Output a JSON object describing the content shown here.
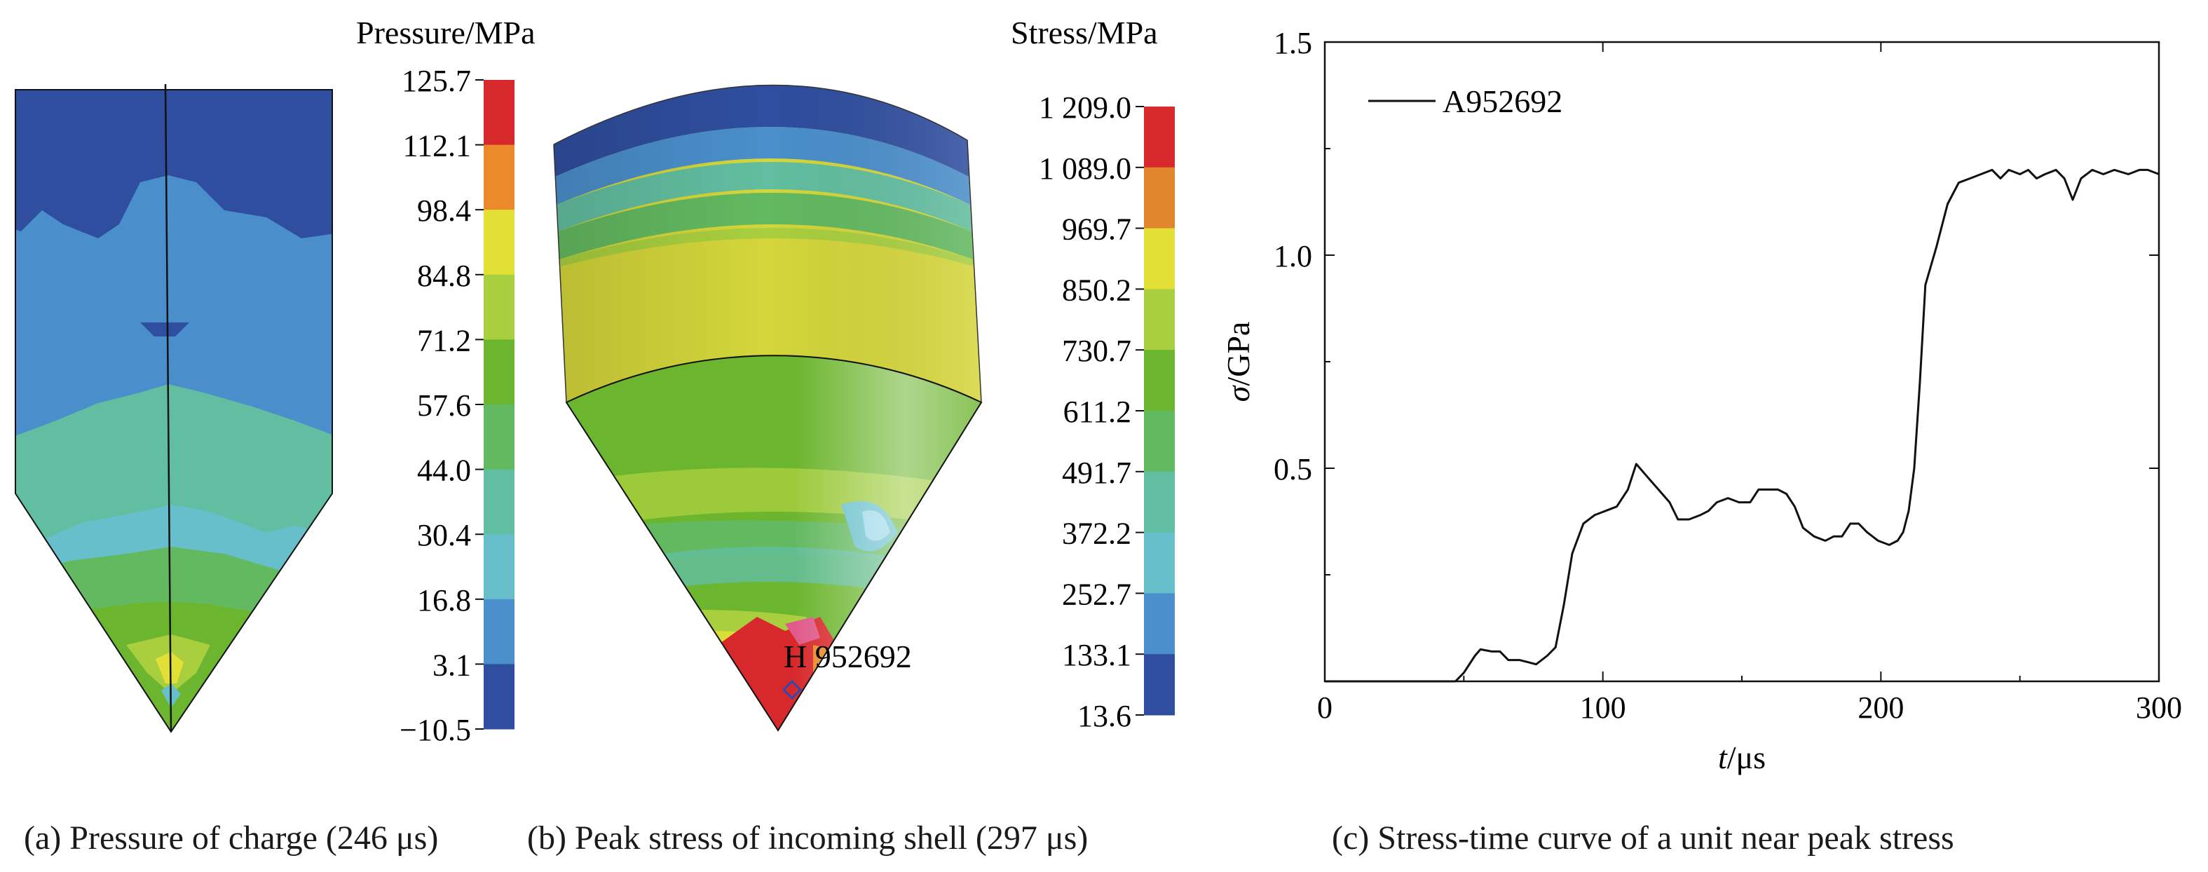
{
  "panel_a": {
    "legend_title": "Pressure/MPa",
    "ticks": [
      "125.7",
      "112.1",
      "98.4",
      "84.8",
      "71.2",
      "57.6",
      "44.0",
      "30.4",
      "16.8",
      "3.1",
      "−10.5"
    ],
    "colors": [
      "#d7292b",
      "#ea8a2a",
      "#e2e036",
      "#a9cf3f",
      "#6cb52e",
      "#63b960",
      "#62bea0",
      "#67bfcc",
      "#4a8fcb",
      "#2f4e9f"
    ],
    "caption": "(a) Pressure of charge (246 μs)"
  },
  "panel_b": {
    "legend_title": "Stress/MPa",
    "ticks": [
      "1 209.0",
      "1 089.0",
      "969.7",
      "850.2",
      "730.7",
      "611.2",
      "491.7",
      "372.2",
      "252.7",
      "133.1",
      "13.6"
    ],
    "colors": [
      "#d7292b",
      "#e0872d",
      "#e2e036",
      "#a9cf3f",
      "#6cb52e",
      "#63b960",
      "#62bea0",
      "#67bfcc",
      "#4a8fcb",
      "#2f4e9f"
    ],
    "annotation": "H 952692",
    "caption": "(b) Peak  stress of incoming shell (297 μs)"
  },
  "chart_data": {
    "type": "line",
    "xlabel_italic": "t",
    "xlabel_unit": "/μs",
    "ylabel_italic": "σ",
    "ylabel_unit": "/GPa",
    "xlim": [
      0,
      300
    ],
    "ylim": [
      0,
      1.5
    ],
    "x_ticks": [
      "0",
      "100",
      "200",
      "300"
    ],
    "y_ticks": [
      "0.5",
      "1.0",
      "1.5"
    ],
    "series": [
      {
        "name": "A952692",
        "color": "#111111",
        "points": [
          [
            0,
            0
          ],
          [
            47,
            0
          ],
          [
            50,
            0.02
          ],
          [
            54,
            0.06
          ],
          [
            56,
            0.075
          ],
          [
            60,
            0.07
          ],
          [
            63,
            0.07
          ],
          [
            66,
            0.05
          ],
          [
            70,
            0.05
          ],
          [
            73,
            0.045
          ],
          [
            76,
            0.04
          ],
          [
            80,
            0.06
          ],
          [
            83,
            0.08
          ],
          [
            86,
            0.18
          ],
          [
            89,
            0.3
          ],
          [
            93,
            0.37
          ],
          [
            97,
            0.39
          ],
          [
            101,
            0.4
          ],
          [
            105,
            0.41
          ],
          [
            109,
            0.45
          ],
          [
            112,
            0.51
          ],
          [
            116,
            0.48
          ],
          [
            120,
            0.45
          ],
          [
            124,
            0.42
          ],
          [
            127,
            0.38
          ],
          [
            131,
            0.38
          ],
          [
            135,
            0.39
          ],
          [
            138,
            0.4
          ],
          [
            141,
            0.42
          ],
          [
            145,
            0.43
          ],
          [
            149,
            0.42
          ],
          [
            153,
            0.42
          ],
          [
            156,
            0.45
          ],
          [
            160,
            0.45
          ],
          [
            163,
            0.45
          ],
          [
            166,
            0.44
          ],
          [
            169,
            0.41
          ],
          [
            172,
            0.36
          ],
          [
            176,
            0.34
          ],
          [
            180,
            0.33
          ],
          [
            183,
            0.34
          ],
          [
            186,
            0.34
          ],
          [
            189,
            0.37
          ],
          [
            192,
            0.37
          ],
          [
            195,
            0.35
          ],
          [
            199,
            0.33
          ],
          [
            203,
            0.32
          ],
          [
            206,
            0.33
          ],
          [
            208,
            0.35
          ],
          [
            210,
            0.4
          ],
          [
            212,
            0.5
          ],
          [
            214,
            0.7
          ],
          [
            216,
            0.93
          ],
          [
            220,
            1.02
          ],
          [
            224,
            1.12
          ],
          [
            228,
            1.17
          ],
          [
            232,
            1.18
          ],
          [
            236,
            1.19
          ],
          [
            240,
            1.2
          ],
          [
            243,
            1.18
          ],
          [
            246,
            1.2
          ],
          [
            250,
            1.19
          ],
          [
            253,
            1.2
          ],
          [
            256,
            1.18
          ],
          [
            259,
            1.19
          ],
          [
            263,
            1.2
          ],
          [
            266,
            1.18
          ],
          [
            269,
            1.13
          ],
          [
            272,
            1.18
          ],
          [
            276,
            1.2
          ],
          [
            280,
            1.19
          ],
          [
            284,
            1.2
          ],
          [
            289,
            1.19
          ],
          [
            293,
            1.2
          ],
          [
            296,
            1.2
          ],
          [
            300,
            1.19
          ]
        ]
      }
    ],
    "grid": false,
    "legend_position": "top-left"
  },
  "panel_c": {
    "caption": "(c) Stress-time curve of a unit near peak stress"
  }
}
